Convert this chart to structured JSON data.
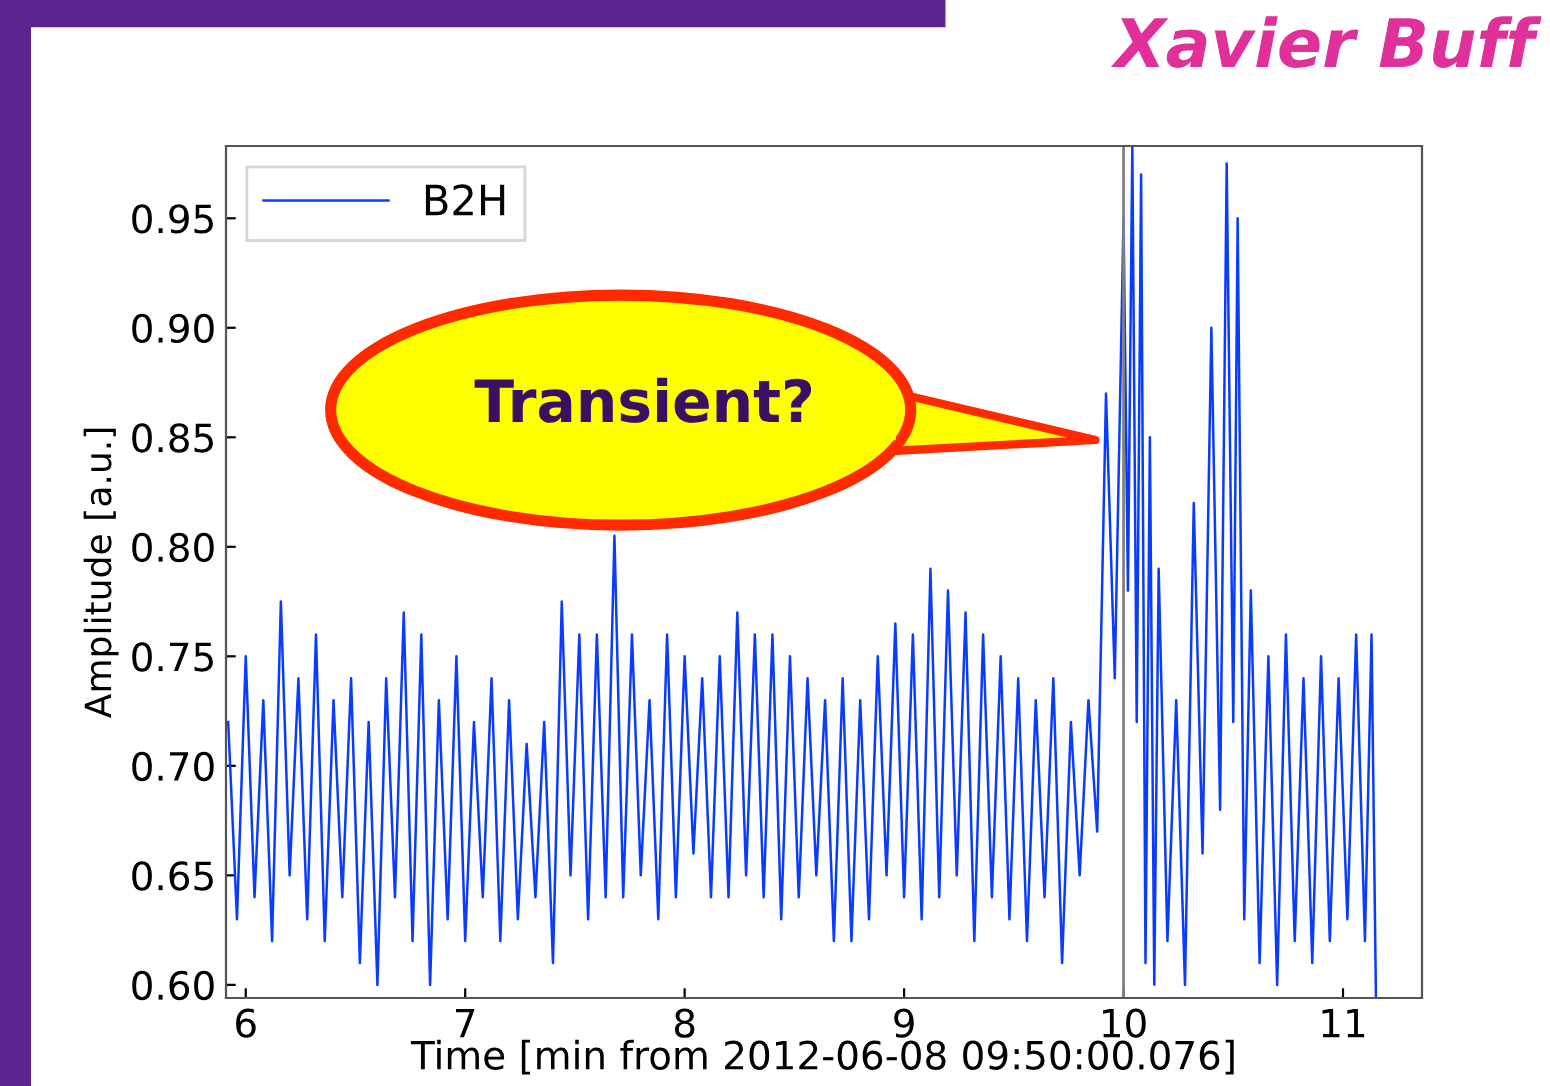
{
  "chart_data": {
    "type": "line",
    "xlabel": "Time [min from 2012-06-08 09:50:00.076]",
    "ylabel": "Amplitude [a.u.]",
    "x": [
      5.92,
      5.96,
      6.0,
      6.04,
      6.08,
      6.12,
      6.16,
      6.2,
      6.24,
      6.28,
      6.32,
      6.36,
      6.4,
      6.44,
      6.48,
      6.52,
      6.56,
      6.6,
      6.64,
      6.68,
      6.72,
      6.76,
      6.8,
      6.84,
      6.88,
      6.92,
      6.96,
      7.0,
      7.04,
      7.08,
      7.12,
      7.16,
      7.2,
      7.24,
      7.28,
      7.32,
      7.36,
      7.4,
      7.44,
      7.48,
      7.52,
      7.56,
      7.6,
      7.64,
      7.68,
      7.72,
      7.76,
      7.8,
      7.84,
      7.88,
      7.92,
      7.96,
      8.0,
      8.04,
      8.08,
      8.12,
      8.16,
      8.2,
      8.24,
      8.28,
      8.32,
      8.36,
      8.4,
      8.44,
      8.48,
      8.52,
      8.56,
      8.6,
      8.64,
      8.68,
      8.72,
      8.76,
      8.8,
      8.84,
      8.88,
      8.92,
      8.96,
      9.0,
      9.04,
      9.08,
      9.12,
      9.16,
      9.2,
      9.24,
      9.28,
      9.32,
      9.36,
      9.4,
      9.44,
      9.48,
      9.52,
      9.56,
      9.6,
      9.64,
      9.68,
      9.72,
      9.76,
      9.8,
      9.84,
      9.88,
      9.92,
      9.96,
      10.0,
      10.02,
      10.04,
      10.06,
      10.08,
      10.1,
      10.12,
      10.14,
      10.16,
      10.2,
      10.24,
      10.28,
      10.32,
      10.36,
      10.4,
      10.44,
      10.47,
      10.5,
      10.52,
      10.55,
      10.58,
      10.62,
      10.66,
      10.7,
      10.74,
      10.78,
      10.82,
      10.86,
      10.9,
      10.94,
      10.98,
      11.02,
      11.06,
      11.1,
      11.13,
      11.15
    ],
    "series": [
      {
        "name": "B2H",
        "color": "#0a3cff",
        "values": [
          0.72,
          0.63,
          0.75,
          0.64,
          0.73,
          0.62,
          0.775,
          0.65,
          0.74,
          0.63,
          0.76,
          0.62,
          0.73,
          0.64,
          0.74,
          0.61,
          0.72,
          0.6,
          0.74,
          0.64,
          0.77,
          0.62,
          0.76,
          0.6,
          0.73,
          0.63,
          0.75,
          0.62,
          0.72,
          0.64,
          0.74,
          0.62,
          0.73,
          0.63,
          0.71,
          0.64,
          0.72,
          0.61,
          0.775,
          0.65,
          0.76,
          0.63,
          0.76,
          0.64,
          0.805,
          0.64,
          0.76,
          0.65,
          0.73,
          0.63,
          0.76,
          0.64,
          0.75,
          0.66,
          0.74,
          0.64,
          0.75,
          0.64,
          0.77,
          0.65,
          0.76,
          0.64,
          0.76,
          0.63,
          0.75,
          0.64,
          0.74,
          0.65,
          0.73,
          0.62,
          0.74,
          0.62,
          0.73,
          0.63,
          0.75,
          0.65,
          0.765,
          0.64,
          0.76,
          0.63,
          0.79,
          0.64,
          0.78,
          0.65,
          0.77,
          0.62,
          0.76,
          0.64,
          0.75,
          0.63,
          0.74,
          0.62,
          0.73,
          0.64,
          0.74,
          0.61,
          0.72,
          0.65,
          0.73,
          0.67,
          0.87,
          0.74,
          0.95,
          0.78,
          0.983,
          0.72,
          0.97,
          0.61,
          0.85,
          0.6,
          0.79,
          0.62,
          0.73,
          0.6,
          0.82,
          0.66,
          0.9,
          0.68,
          0.975,
          0.72,
          0.95,
          0.63,
          0.78,
          0.61,
          0.75,
          0.6,
          0.76,
          0.62,
          0.74,
          0.61,
          0.75,
          0.62,
          0.74,
          0.63,
          0.76,
          0.62,
          0.76,
          0.595
        ]
      }
    ],
    "xlim": [
      5.91,
      11.36
    ],
    "ylim": [
      0.594,
      0.983
    ],
    "xticks": [
      6,
      7,
      8,
      9,
      10,
      11
    ],
    "yticks": [
      {
        "value": 0.6,
        "label": "0.60"
      },
      {
        "value": 0.65,
        "label": "0.65"
      },
      {
        "value": 0.7,
        "label": "0.70"
      },
      {
        "value": 0.75,
        "label": "0.75"
      },
      {
        "value": 0.8,
        "label": "0.80"
      },
      {
        "value": 0.85,
        "label": "0.85"
      },
      {
        "value": 0.9,
        "label": "0.90"
      },
      {
        "value": 0.95,
        "label": "0.95"
      }
    ],
    "grid": false,
    "legend": "top left",
    "marker": "none",
    "line_style": "solid",
    "ref_lines": [
      {
        "axis": "x",
        "value": 10,
        "color": "#808080"
      }
    ],
    "annotations": [
      "Transient?",
      "Xavier Buff"
    ]
  }
}
